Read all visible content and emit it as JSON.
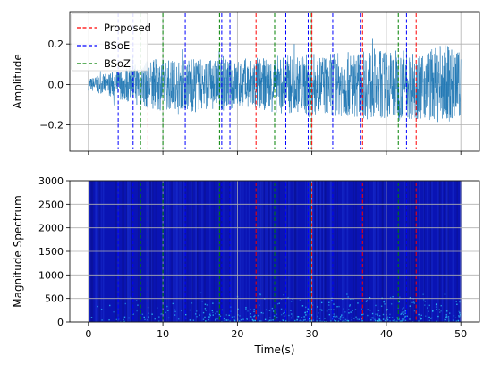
{
  "chart_data": [
    {
      "type": "line",
      "ylabel": "Amplitude",
      "xlim": [
        -2.5,
        52.5
      ],
      "ylim": [
        -0.33,
        0.36
      ],
      "yticks": [
        -0.2,
        0.0,
        0.2
      ],
      "ytick_labels": [
        "−0.2",
        "0.0",
        "0.2"
      ],
      "xticks": [
        0,
        10,
        20,
        30,
        40,
        50
      ],
      "grid": true,
      "legend": {
        "placement": "top-left",
        "entries": [
          {
            "label": "Proposed",
            "color": "#ff0000",
            "style": "dashed"
          },
          {
            "label": "BSoE",
            "color": "#0000ff",
            "style": "dashed"
          },
          {
            "label": "BSoZ",
            "color": "#008000",
            "style": "dashed"
          }
        ]
      },
      "signal": {
        "color": "#1f77b4",
        "x_range": [
          0,
          50
        ],
        "envelope_t": [
          0,
          2,
          4,
          6,
          8,
          10,
          12,
          14,
          16,
          18,
          20,
          22,
          24,
          26,
          28,
          30,
          32,
          34,
          36,
          38,
          40,
          42,
          44,
          46,
          48,
          50
        ],
        "envelope_amp": [
          0.03,
          0.05,
          0.07,
          0.1,
          0.12,
          0.13,
          0.12,
          0.14,
          0.12,
          0.13,
          0.12,
          0.14,
          0.13,
          0.15,
          0.14,
          0.16,
          0.15,
          0.16,
          0.16,
          0.18,
          0.17,
          0.18,
          0.17,
          0.18,
          0.2,
          0.16
        ]
      },
      "events": {
        "Proposed": [
          8,
          22.5,
          30,
          36.8,
          44
        ],
        "BSoE": [
          4,
          6,
          13,
          17.9,
          19,
          26.5,
          29.5,
          32.8,
          36.5,
          42.7
        ],
        "BSoZ": [
          7,
          10,
          17.6,
          25,
          29.8,
          41.6
        ]
      }
    },
    {
      "type": "heatmap",
      "xlabel": "Time(s)",
      "ylabel": "Magnitude Spectrum",
      "xlim": [
        -2.5,
        52.5
      ],
      "ylim": [
        0,
        3000
      ],
      "xticks": [
        0,
        10,
        20,
        30,
        40,
        50
      ],
      "yticks": [
        0,
        500,
        1000,
        1500,
        2000,
        2500,
        3000
      ],
      "grid": true,
      "x_range": [
        0,
        50
      ],
      "background_color": "#0a14b4",
      "low_freq_energy_color": "#2fd0ff",
      "events": {
        "Proposed": [
          8,
          22.5,
          30,
          36.8,
          44
        ],
        "BSoE": [
          4,
          6,
          13,
          17.9,
          19,
          26.5,
          29.5,
          32.8,
          36.5,
          42.7
        ],
        "BSoZ": [
          7,
          10,
          17.6,
          25,
          29.8,
          41.6
        ]
      }
    }
  ]
}
